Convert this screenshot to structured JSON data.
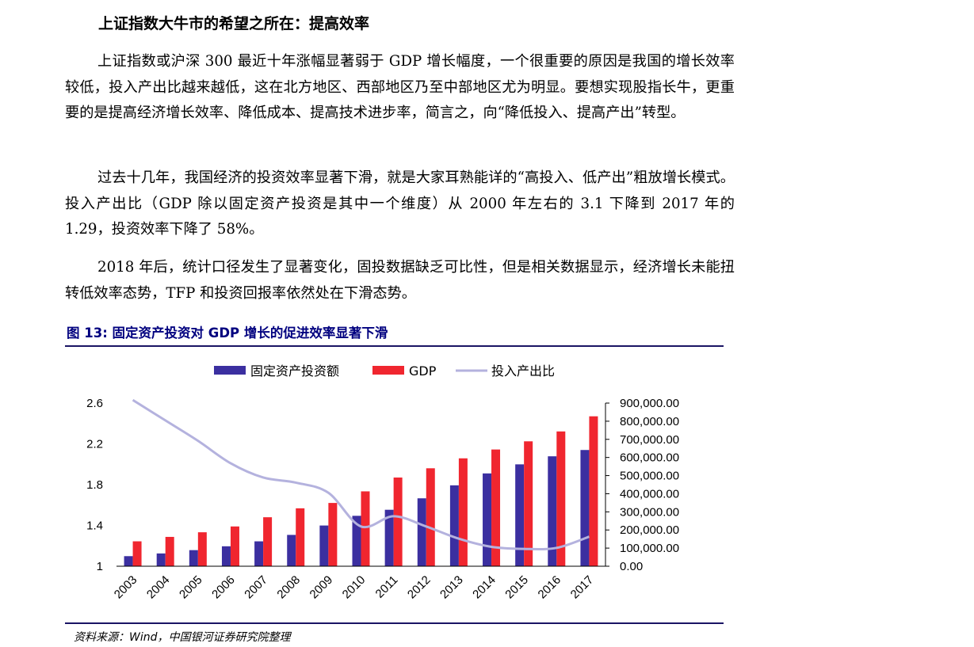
{
  "section_heading": "上证指数大牛市的希望之所在：提高效率",
  "paragraphs": [
    "上证指数或沪深 300 最近十年涨幅显著弱于 GDP 增长幅度，一个很重要的原因是我国的增长效率较低，投入产出比越来越低，这在北方地区、西部地区乃至中部地区尤为明显。要想实现股指长牛，更重要的是提高经济增长效率、降低成本、提高技术进步率，简言之，向“降低投入、提高产出”转型。",
    "过去十几年，我国经济的投资效率显著下滑，就是大家耳熟能详的“高投入、低产出”粗放增长模式。投入产出比（GDP 除以固定资产投资是其中一个维度）从 2000 年左右的 3.1 下降到 2017 年的 1.29，投资效率下降了 58%。",
    "2018  年后，统计口径发生了显著变化，固投数据缺乏可比性，但是相关数据显示，经济增长未能扭转低效率态势，TFP 和投资回报率依然处在下滑态势。"
  ],
  "figure_title": "图 13:  固定资产投资对 GDP 增长的促进效率显著下滑",
  "source_note": "资料来源：Wind，中国银河证券研究院整理",
  "colors": {
    "investment": "#3b2fa0",
    "gdp": "#f0262f",
    "ratio": "#b4b2de",
    "rule": "#1a1464",
    "figure_title": "#00007f"
  },
  "chart_data": {
    "type": "bar",
    "categories": [
      "2003",
      "2004",
      "2005",
      "2006",
      "2007",
      "2008",
      "2009",
      "2010",
      "2011",
      "2012",
      "2013",
      "2014",
      "2015",
      "2016",
      "2017"
    ],
    "series": [
      {
        "name": "固定资产投资额",
        "kind": "bar",
        "axis": "right",
        "values": [
          55567,
          70477,
          88774,
          109998,
          137324,
          172828,
          224599,
          278122,
          311485,
          374695,
          446294,
          512021,
          561999,
          606466,
          641238
        ]
      },
      {
        "name": "GDP",
        "kind": "bar",
        "axis": "right",
        "values": [
          137422,
          161840,
          187319,
          219439,
          270232,
          319516,
          349081,
          413030,
          489301,
          540367,
          595244,
          643974,
          689052,
          743586,
          827122
        ]
      },
      {
        "name": "投入产出比",
        "kind": "line",
        "axis": "left",
        "values": [
          2.63,
          2.43,
          2.23,
          2.01,
          1.87,
          1.82,
          1.72,
          1.39,
          1.49,
          1.39,
          1.27,
          1.19,
          1.17,
          1.18,
          1.29
        ]
      }
    ],
    "left_axis": {
      "ticks": [
        "2.6",
        "2.2",
        "1.8",
        "1.4",
        "1"
      ],
      "ylim": [
        1,
        2.6
      ]
    },
    "right_axis": {
      "ticks": [
        "900,000.00",
        "800,000.00",
        "700,000.00",
        "600,000.00",
        "500,000.00",
        "400,000.00",
        "300,000.00",
        "200,000.00",
        "100,000.00",
        "0.00"
      ],
      "ylim": [
        0,
        900000
      ]
    },
    "legend_position": "top-center",
    "grid": false
  }
}
